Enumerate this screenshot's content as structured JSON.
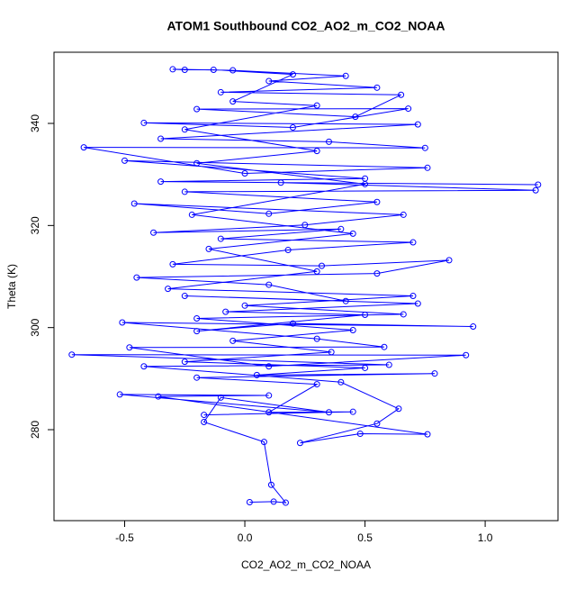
{
  "chart_data": {
    "type": "line",
    "title": "ATOM1 Southbound CO2_AO2_m_CO2_NOAA",
    "x_label": "CO2_AO2_m_CO2_NOAA",
    "y_label": "Theta (K)",
    "xlim": [
      -0.794,
      1.303
    ],
    "ylim": [
      262.18,
      353.94
    ],
    "xticks": [
      -0.5,
      {
        "value": 0,
        "label": "0.0"
      },
      0.5,
      {
        "value": 1,
        "label": "1.0"
      }
    ],
    "yticks": [
      280,
      300,
      320,
      340
    ],
    "grid": false,
    "series": [
      {
        "color": "#0000ff",
        "x": [
          0.02,
          0.12,
          0.17,
          0.11,
          0.08,
          -0.17,
          -0.1,
          0.35,
          -0.52,
          0.1,
          -0.36,
          0.76,
          0.48,
          0.23,
          0.55,
          0.64,
          0.4,
          -0.42,
          0.6,
          -0.72,
          0.92,
          0.1,
          -0.48,
          0.58,
          0.3,
          -0.51,
          0.95,
          0.2,
          -0.2,
          0.5,
          -0.08,
          0.72,
          -0.25,
          0.42,
          0.1,
          -0.45,
          0.55,
          0.85,
          0.32,
          -0.3,
          0.18,
          0.7,
          -0.1,
          0.4,
          -0.38,
          0.25,
          0.66,
          -0.46,
          0.1,
          0.55,
          -0.25,
          1.21,
          0.15,
          1.22,
          -0.35,
          0.5,
          -0.5,
          0.76,
          0.0,
          -0.67,
          0.75,
          0.35,
          -0.35,
          0.72,
          -0.42,
          0.2,
          0.68,
          -0.2,
          0.46,
          0.65,
          -0.1,
          0.55,
          0.1,
          0.42,
          -0.05,
          -0.3,
          -0.25,
          -0.13,
          0.2,
          -0.05,
          0.3,
          -0.25,
          0.3,
          -0.2,
          0.5,
          -0.22,
          0.45,
          -0.15,
          0.3,
          -0.32,
          0.7,
          0.0,
          0.66,
          -0.2,
          0.45,
          -0.05,
          0.36,
          -0.25,
          0.5,
          0.05,
          0.79,
          -0.2,
          0.3,
          0.1,
          0.45,
          -0.17
        ],
        "values": [
          265.8,
          265.9,
          265.7,
          269.2,
          277.6,
          281.5,
          286.3,
          283.4,
          286.9,
          286.7,
          286.5,
          279.1,
          279.2,
          277.4,
          281.2,
          284.1,
          289.3,
          292.4,
          292.7,
          294.7,
          294.6,
          292.4,
          296.1,
          296.2,
          297.8,
          301,
          300.2,
          300.8,
          299.3,
          302.5,
          303.1,
          304.7,
          306.2,
          305.2,
          308.4,
          309.8,
          310.6,
          313.2,
          312.1,
          312.4,
          315.2,
          316.7,
          317.4,
          319.3,
          318.6,
          320.1,
          322.1,
          324.3,
          322.3,
          324.6,
          326.6,
          326.9,
          328.4,
          328,
          328.6,
          329.2,
          332.7,
          331.3,
          330.2,
          335.3,
          335.2,
          336.4,
          337,
          339.8,
          340.1,
          339.2,
          342.9,
          342.8,
          341.3,
          345.6,
          346.1,
          347,
          348.3,
          349.3,
          350.4,
          350.6,
          350.5,
          350.5,
          349.6,
          344.3,
          343.5,
          338.8,
          334.6,
          332.2,
          328.1,
          322.1,
          318.4,
          315.4,
          311,
          307.6,
          306.2,
          304.3,
          302.6,
          301.8,
          299.5,
          297.4,
          295.2,
          293.3,
          292.1,
          290.7,
          291,
          290.2,
          288.9,
          283.4,
          283.5,
          282.9
        ]
      }
    ]
  }
}
